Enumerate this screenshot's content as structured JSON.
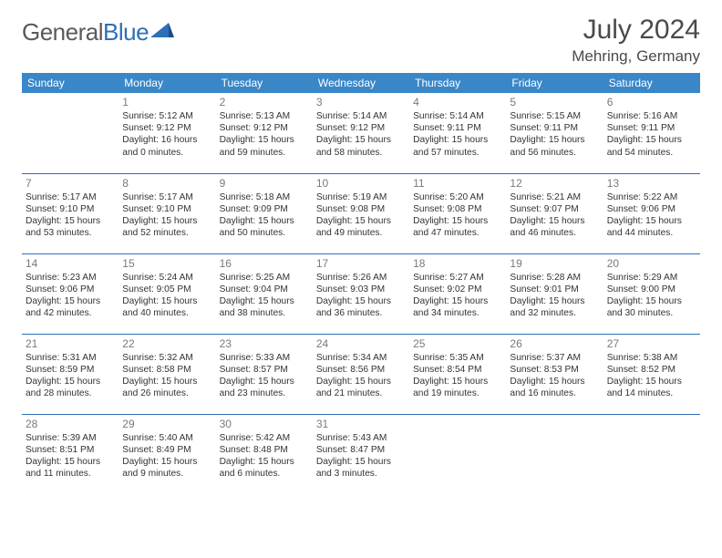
{
  "logo": {
    "general": "General",
    "blue": "Blue"
  },
  "title": "July 2024",
  "location": "Mehring, Germany",
  "colors": {
    "header_bg": "#3a87c8",
    "header_text": "#ffffff",
    "week_border": "#2d6fb8",
    "daynum": "#7a7a7a",
    "body_text": "#333333",
    "logo_gray": "#5a5a5a",
    "logo_blue": "#2d6fb8"
  },
  "day_headers": [
    "Sunday",
    "Monday",
    "Tuesday",
    "Wednesday",
    "Thursday",
    "Friday",
    "Saturday"
  ],
  "weeks": [
    [
      null,
      {
        "n": "1",
        "sr": "5:12 AM",
        "ss": "9:12 PM",
        "dl": "16 hours and 0 minutes."
      },
      {
        "n": "2",
        "sr": "5:13 AM",
        "ss": "9:12 PM",
        "dl": "15 hours and 59 minutes."
      },
      {
        "n": "3",
        "sr": "5:14 AM",
        "ss": "9:12 PM",
        "dl": "15 hours and 58 minutes."
      },
      {
        "n": "4",
        "sr": "5:14 AM",
        "ss": "9:11 PM",
        "dl": "15 hours and 57 minutes."
      },
      {
        "n": "5",
        "sr": "5:15 AM",
        "ss": "9:11 PM",
        "dl": "15 hours and 56 minutes."
      },
      {
        "n": "6",
        "sr": "5:16 AM",
        "ss": "9:11 PM",
        "dl": "15 hours and 54 minutes."
      }
    ],
    [
      {
        "n": "7",
        "sr": "5:17 AM",
        "ss": "9:10 PM",
        "dl": "15 hours and 53 minutes."
      },
      {
        "n": "8",
        "sr": "5:17 AM",
        "ss": "9:10 PM",
        "dl": "15 hours and 52 minutes."
      },
      {
        "n": "9",
        "sr": "5:18 AM",
        "ss": "9:09 PM",
        "dl": "15 hours and 50 minutes."
      },
      {
        "n": "10",
        "sr": "5:19 AM",
        "ss": "9:08 PM",
        "dl": "15 hours and 49 minutes."
      },
      {
        "n": "11",
        "sr": "5:20 AM",
        "ss": "9:08 PM",
        "dl": "15 hours and 47 minutes."
      },
      {
        "n": "12",
        "sr": "5:21 AM",
        "ss": "9:07 PM",
        "dl": "15 hours and 46 minutes."
      },
      {
        "n": "13",
        "sr": "5:22 AM",
        "ss": "9:06 PM",
        "dl": "15 hours and 44 minutes."
      }
    ],
    [
      {
        "n": "14",
        "sr": "5:23 AM",
        "ss": "9:06 PM",
        "dl": "15 hours and 42 minutes."
      },
      {
        "n": "15",
        "sr": "5:24 AM",
        "ss": "9:05 PM",
        "dl": "15 hours and 40 minutes."
      },
      {
        "n": "16",
        "sr": "5:25 AM",
        "ss": "9:04 PM",
        "dl": "15 hours and 38 minutes."
      },
      {
        "n": "17",
        "sr": "5:26 AM",
        "ss": "9:03 PM",
        "dl": "15 hours and 36 minutes."
      },
      {
        "n": "18",
        "sr": "5:27 AM",
        "ss": "9:02 PM",
        "dl": "15 hours and 34 minutes."
      },
      {
        "n": "19",
        "sr": "5:28 AM",
        "ss": "9:01 PM",
        "dl": "15 hours and 32 minutes."
      },
      {
        "n": "20",
        "sr": "5:29 AM",
        "ss": "9:00 PM",
        "dl": "15 hours and 30 minutes."
      }
    ],
    [
      {
        "n": "21",
        "sr": "5:31 AM",
        "ss": "8:59 PM",
        "dl": "15 hours and 28 minutes."
      },
      {
        "n": "22",
        "sr": "5:32 AM",
        "ss": "8:58 PM",
        "dl": "15 hours and 26 minutes."
      },
      {
        "n": "23",
        "sr": "5:33 AM",
        "ss": "8:57 PM",
        "dl": "15 hours and 23 minutes."
      },
      {
        "n": "24",
        "sr": "5:34 AM",
        "ss": "8:56 PM",
        "dl": "15 hours and 21 minutes."
      },
      {
        "n": "25",
        "sr": "5:35 AM",
        "ss": "8:54 PM",
        "dl": "15 hours and 19 minutes."
      },
      {
        "n": "26",
        "sr": "5:37 AM",
        "ss": "8:53 PM",
        "dl": "15 hours and 16 minutes."
      },
      {
        "n": "27",
        "sr": "5:38 AM",
        "ss": "8:52 PM",
        "dl": "15 hours and 14 minutes."
      }
    ],
    [
      {
        "n": "28",
        "sr": "5:39 AM",
        "ss": "8:51 PM",
        "dl": "15 hours and 11 minutes."
      },
      {
        "n": "29",
        "sr": "5:40 AM",
        "ss": "8:49 PM",
        "dl": "15 hours and 9 minutes."
      },
      {
        "n": "30",
        "sr": "5:42 AM",
        "ss": "8:48 PM",
        "dl": "15 hours and 6 minutes."
      },
      {
        "n": "31",
        "sr": "5:43 AM",
        "ss": "8:47 PM",
        "dl": "15 hours and 3 minutes."
      },
      null,
      null,
      null
    ]
  ],
  "labels": {
    "sunrise": "Sunrise:",
    "sunset": "Sunset:",
    "daylight": "Daylight:"
  }
}
